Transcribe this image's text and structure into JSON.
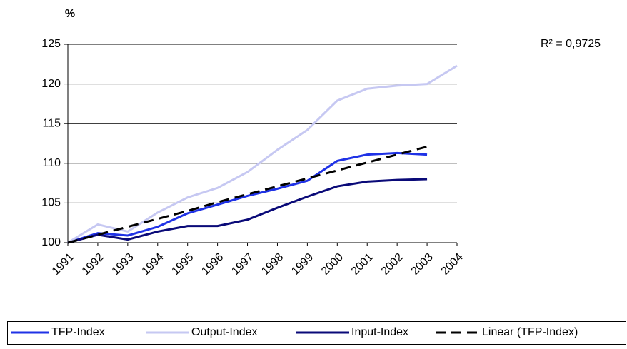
{
  "chart_data": {
    "type": "line",
    "y_label": "%",
    "annotation": "R² = 0,9725",
    "categories": [
      "1991",
      "1992",
      "1993",
      "1994",
      "1995",
      "1996",
      "1997",
      "1998",
      "1999",
      "2000",
      "2001",
      "2002",
      "2003",
      "2004"
    ],
    "series": [
      {
        "name": "TFP-Index",
        "color": "#1f32e6",
        "dashed": false,
        "values": [
          100,
          101.2,
          100.9,
          102.0,
          103.7,
          104.8,
          105.9,
          106.8,
          107.8,
          110.3,
          111.1,
          111.3,
          111.1,
          null
        ]
      },
      {
        "name": "Output-Index",
        "color": "#c6c8f2",
        "dashed": false,
        "values": [
          100,
          102.3,
          101.4,
          103.8,
          105.7,
          106.9,
          108.9,
          111.7,
          114.2,
          117.9,
          119.4,
          119.8,
          120.0,
          122.3
        ]
      },
      {
        "name": "Input-Index",
        "color": "#0a0a78",
        "dashed": false,
        "values": [
          100,
          101.0,
          100.4,
          101.4,
          102.1,
          102.1,
          102.9,
          104.4,
          105.8,
          107.1,
          107.7,
          107.9,
          108.0,
          null
        ]
      },
      {
        "name": "Linear (TFP-Index)",
        "color": "#000000",
        "dashed": true,
        "values": [
          100.0,
          101.0,
          102.0,
          103.0,
          104.0,
          105.1,
          106.1,
          107.1,
          108.1,
          109.1,
          110.1,
          111.1,
          112.1,
          null
        ]
      }
    ],
    "ylim": [
      100,
      125
    ],
    "yticks": [
      100,
      105,
      110,
      115,
      120,
      125
    ],
    "grid": true
  }
}
